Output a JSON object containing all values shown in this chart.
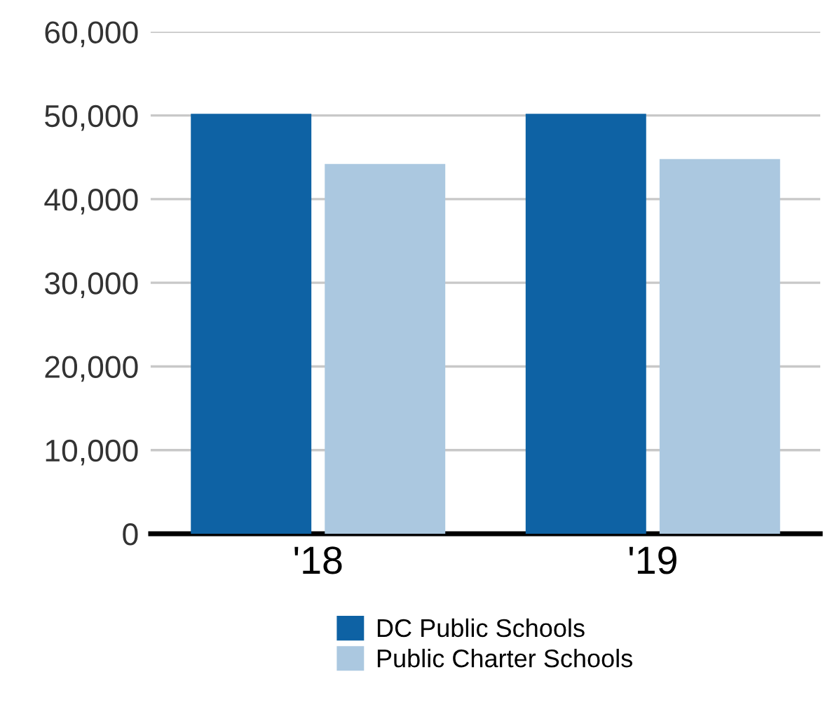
{
  "chart_data": {
    "type": "bar",
    "categories": [
      "'18",
      "'19"
    ],
    "series": [
      {
        "name": "DC Public Schools",
        "color": "#0e62a4",
        "values": [
          50200,
          50200
        ]
      },
      {
        "name": "Public Charter Schools",
        "color": "#abc8e0",
        "values": [
          44200,
          44800
        ]
      }
    ],
    "ylim": [
      0,
      60000
    ],
    "yticks": [
      {
        "value": 0,
        "label": "0"
      },
      {
        "value": 10000,
        "label": "10,000"
      },
      {
        "value": 20000,
        "label": "20,000"
      },
      {
        "value": 30000,
        "label": "30,000"
      },
      {
        "value": 40000,
        "label": "40,000"
      },
      {
        "value": 50000,
        "label": "50,000"
      },
      {
        "value": 60000,
        "label": "60,000"
      }
    ],
    "grid": "y",
    "legend": "bottom"
  }
}
